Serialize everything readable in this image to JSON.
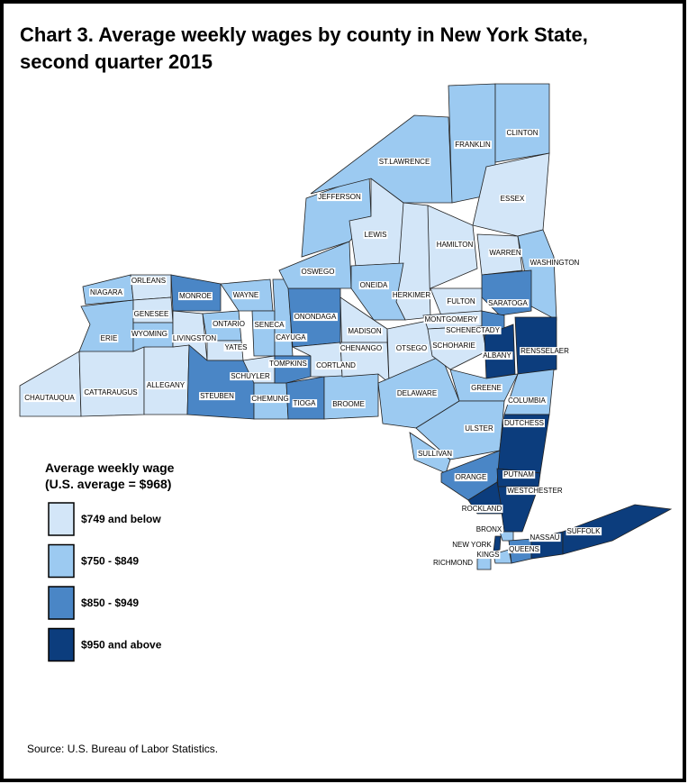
{
  "header": {
    "title_lines": [
      "Chart 3. Average weekly wages by county in New York State,",
      "second quarter 2015"
    ]
  },
  "legend": {
    "title_lines": [
      "Average weekly wage",
      "(U.S. average = $968)"
    ],
    "items": [
      {
        "label": "$749 and below",
        "color": "#d3e6f8"
      },
      {
        "label": "$750 - $849",
        "color": "#9ccaf1"
      },
      {
        "label": "$850 - $949",
        "color": "#4a86c6"
      },
      {
        "label": "$950 and above",
        "color": "#0c3d7d"
      }
    ]
  },
  "counties": [
    {
      "name": "CHAUTAUQUA",
      "class": 0
    },
    {
      "name": "CATTARAUGUS",
      "class": 0
    },
    {
      "name": "ALLEGANY",
      "class": 0
    },
    {
      "name": "ERIE",
      "class": 1
    },
    {
      "name": "NIAGARA",
      "class": 1
    },
    {
      "name": "ORLEANS",
      "class": 0
    },
    {
      "name": "GENESEE",
      "class": 0
    },
    {
      "name": "WYOMING",
      "class": 1
    },
    {
      "name": "MONROE",
      "class": 2
    },
    {
      "name": "LIVINGSTON",
      "class": 0
    },
    {
      "name": "ONTARIO",
      "class": 1
    },
    {
      "name": "WAYNE",
      "class": 1
    },
    {
      "name": "SENECA",
      "class": 1
    },
    {
      "name": "YATES",
      "class": 0
    },
    {
      "name": "STEUBEN",
      "class": 2
    },
    {
      "name": "SCHUYLER",
      "class": 0
    },
    {
      "name": "CHEMUNG",
      "class": 1
    },
    {
      "name": "CAYUGA",
      "class": 1
    },
    {
      "name": "TOMPKINS",
      "class": 2
    },
    {
      "name": "TIOGA",
      "class": 2
    },
    {
      "name": "ONONDAGA",
      "class": 2
    },
    {
      "name": "CORTLAND",
      "class": 0
    },
    {
      "name": "BROOME",
      "class": 1
    },
    {
      "name": "OSWEGO",
      "class": 1
    },
    {
      "name": "JEFFERSON",
      "class": 1
    },
    {
      "name": "LEWIS",
      "class": 0
    },
    {
      "name": "ST.LAWRENCE",
      "class": 1
    },
    {
      "name": "FRANKLIN",
      "class": 1
    },
    {
      "name": "CLINTON",
      "class": 1
    },
    {
      "name": "ESSEX",
      "class": 0
    },
    {
      "name": "HAMILTON",
      "class": 0
    },
    {
      "name": "HERKIMER",
      "class": 0
    },
    {
      "name": "ONEIDA",
      "class": 1
    },
    {
      "name": "MADISON",
      "class": 0
    },
    {
      "name": "OTSEGO",
      "class": 0
    },
    {
      "name": "CHENANGO",
      "class": 0
    },
    {
      "name": "DELAWARE",
      "class": 1
    },
    {
      "name": "WARREN",
      "class": 0
    },
    {
      "name": "WASHINGTON",
      "class": 1
    },
    {
      "name": "SARATOGA",
      "class": 2
    },
    {
      "name": "FULTON",
      "class": 0
    },
    {
      "name": "MONTGOMERY",
      "class": 0
    },
    {
      "name": "SCHENECTADY",
      "class": 2
    },
    {
      "name": "SCHOHARIE",
      "class": 0
    },
    {
      "name": "ALBANY",
      "class": 3
    },
    {
      "name": "RENSSELAER",
      "class": 3
    },
    {
      "name": "GREENE",
      "class": 1
    },
    {
      "name": "COLUMBIA",
      "class": 1
    },
    {
      "name": "ULSTER",
      "class": 1
    },
    {
      "name": "DUTCHESS",
      "class": 3
    },
    {
      "name": "SULLIVAN",
      "class": 1
    },
    {
      "name": "ORANGE",
      "class": 2
    },
    {
      "name": "PUTNAM",
      "class": 3
    },
    {
      "name": "WESTCHESTER",
      "class": 3
    },
    {
      "name": "ROCKLAND",
      "class": 3
    },
    {
      "name": "BRONX",
      "class": 1
    },
    {
      "name": "NEW YORK",
      "class": 3
    },
    {
      "name": "KINGS",
      "class": 1
    },
    {
      "name": "QUEENS",
      "class": 2
    },
    {
      "name": "RICHMOND",
      "class": 1
    },
    {
      "name": "NASSAU",
      "class": 3
    },
    {
      "name": "SUFFOLK",
      "class": 3
    }
  ],
  "source": "Source: U.S. Bureau of Labor Statistics."
}
